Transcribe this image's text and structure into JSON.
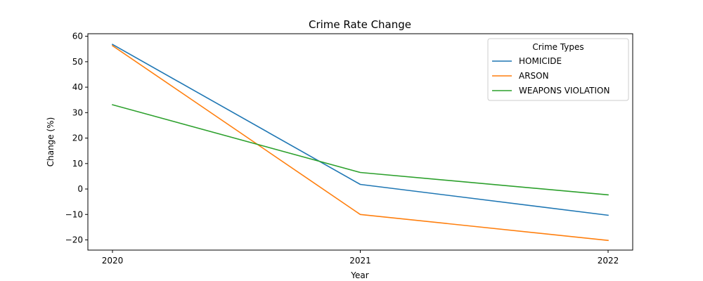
{
  "chart_data": {
    "type": "line",
    "title": "Crime Rate Change",
    "xlabel": "Year",
    "ylabel": "Change (%)",
    "x": [
      "2020",
      "2021",
      "2022"
    ],
    "ylim": [
      -24,
      61
    ],
    "yticks": [
      -20,
      -10,
      0,
      10,
      20,
      30,
      40,
      50,
      60
    ],
    "grid": false,
    "legend": {
      "title": "Crime Types",
      "placement": "top-right"
    },
    "series": [
      {
        "name": "HOMICIDE",
        "color": "#1f77b4",
        "values": [
          56.8,
          1.8,
          -10.3
        ]
      },
      {
        "name": "ARSON",
        "color": "#ff7f0e",
        "values": [
          56.3,
          -10.0,
          -20.2
        ]
      },
      {
        "name": "WEAPONS VIOLATION",
        "color": "#2ca02c",
        "values": [
          33.1,
          6.5,
          -2.3
        ]
      }
    ]
  }
}
